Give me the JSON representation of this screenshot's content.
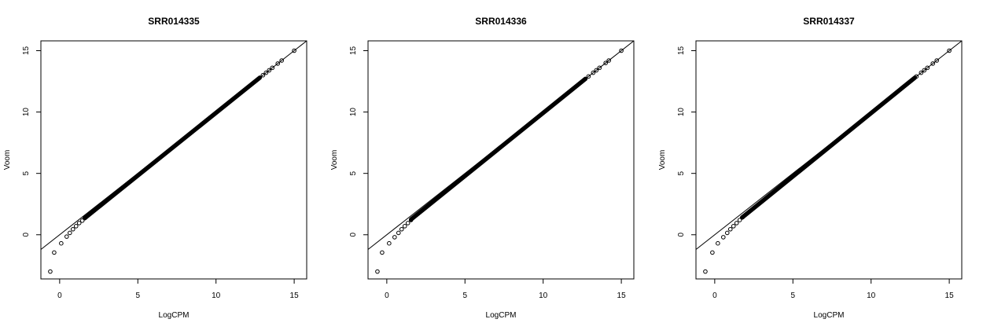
{
  "chart_data": [
    {
      "type": "scatter",
      "title": "SRR014335",
      "xlabel": "LogCPM",
      "ylabel": "Voom",
      "xlim": [
        -1.2,
        15.8
      ],
      "ylim": [
        -3.6,
        15.8
      ],
      "xticks": [
        "0",
        "5",
        "10",
        "15"
      ],
      "yticks": [
        "0",
        "5",
        "10",
        "15"
      ],
      "reference_line": {
        "slope": 1,
        "intercept": 0
      },
      "discrete_points": [
        {
          "x": -0.6,
          "y": -3.0
        },
        {
          "x": -0.35,
          "y": -1.45
        },
        {
          "x": 0.1,
          "y": -0.7
        },
        {
          "x": 0.45,
          "y": -0.15
        },
        {
          "x": 0.65,
          "y": 0.15
        },
        {
          "x": 0.85,
          "y": 0.45
        },
        {
          "x": 1.05,
          "y": 0.7
        },
        {
          "x": 1.25,
          "y": 0.95
        },
        {
          "x": 1.45,
          "y": 1.15
        },
        {
          "x": 1.65,
          "y": 1.4
        },
        {
          "x": 13.0,
          "y": 13.0
        },
        {
          "x": 13.2,
          "y": 13.2
        },
        {
          "x": 13.4,
          "y": 13.4
        },
        {
          "x": 13.6,
          "y": 13.6
        },
        {
          "x": 13.95,
          "y": 13.95
        },
        {
          "x": 14.2,
          "y": 14.2
        },
        {
          "x": 15.0,
          "y": 15.0
        }
      ],
      "dense_band": {
        "x_start": 1.6,
        "x_end": 12.8,
        "y_at_start": 1.35,
        "y_at_end": 12.8
      }
    },
    {
      "type": "scatter",
      "title": "SRR014336",
      "xlabel": "LogCPM",
      "ylabel": "Voom",
      "xlim": [
        -1.2,
        15.8
      ],
      "ylim": [
        -3.6,
        15.8
      ],
      "xticks": [
        "0",
        "5",
        "10",
        "15"
      ],
      "yticks": [
        "0",
        "5",
        "10",
        "15"
      ],
      "reference_line": {
        "slope": 1,
        "intercept": 0
      },
      "discrete_points": [
        {
          "x": -0.6,
          "y": -3.0
        },
        {
          "x": -0.3,
          "y": -1.45
        },
        {
          "x": 0.15,
          "y": -0.7
        },
        {
          "x": 0.5,
          "y": -0.2
        },
        {
          "x": 0.75,
          "y": 0.15
        },
        {
          "x": 0.95,
          "y": 0.45
        },
        {
          "x": 1.15,
          "y": 0.7
        },
        {
          "x": 1.35,
          "y": 0.95
        },
        {
          "x": 1.55,
          "y": 1.2
        },
        {
          "x": 12.9,
          "y": 12.9
        },
        {
          "x": 13.2,
          "y": 13.2
        },
        {
          "x": 13.4,
          "y": 13.4
        },
        {
          "x": 13.6,
          "y": 13.6
        },
        {
          "x": 14.0,
          "y": 14.0
        },
        {
          "x": 14.2,
          "y": 14.2
        },
        {
          "x": 15.0,
          "y": 15.0
        }
      ],
      "dense_band": {
        "x_start": 1.55,
        "x_end": 12.7,
        "y_at_start": 1.25,
        "y_at_end": 12.7
      }
    },
    {
      "type": "scatter",
      "title": "SRR014337",
      "xlabel": "LogCPM",
      "ylabel": "Voom",
      "xlim": [
        -1.2,
        15.8
      ],
      "ylim": [
        -3.6,
        15.8
      ],
      "xticks": [
        "0",
        "5",
        "10",
        "15"
      ],
      "yticks": [
        "0",
        "5",
        "10",
        "15"
      ],
      "reference_line": {
        "slope": 1,
        "intercept": 0
      },
      "discrete_points": [
        {
          "x": -0.6,
          "y": -3.0
        },
        {
          "x": -0.15,
          "y": -1.45
        },
        {
          "x": 0.2,
          "y": -0.7
        },
        {
          "x": 0.55,
          "y": -0.2
        },
        {
          "x": 0.8,
          "y": 0.15
        },
        {
          "x": 1.0,
          "y": 0.45
        },
        {
          "x": 1.2,
          "y": 0.7
        },
        {
          "x": 1.4,
          "y": 0.95
        },
        {
          "x": 1.6,
          "y": 1.2
        },
        {
          "x": 1.8,
          "y": 1.45
        },
        {
          "x": 12.9,
          "y": 12.9
        },
        {
          "x": 13.2,
          "y": 13.2
        },
        {
          "x": 13.4,
          "y": 13.4
        },
        {
          "x": 13.6,
          "y": 13.6
        },
        {
          "x": 13.95,
          "y": 13.95
        },
        {
          "x": 14.2,
          "y": 14.2
        },
        {
          "x": 15.0,
          "y": 15.0
        }
      ],
      "dense_band": {
        "x_start": 1.75,
        "x_end": 12.8,
        "y_at_start": 1.4,
        "y_at_end": 12.8
      }
    }
  ]
}
